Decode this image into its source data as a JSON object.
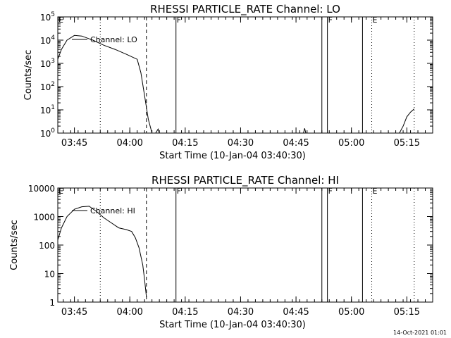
{
  "stamp": "14-Oct-2021 01:01",
  "chart_data": [
    {
      "type": "line",
      "title": "RHESSI PARTICLE_RATE Channel: LO",
      "xlabel": "Start Time (10-Jan-04 03:40:30)",
      "ylabel": "Counts/sec",
      "yscale": "log",
      "ylim": [
        1,
        100000
      ],
      "y_ticks": [
        {
          "value": 1,
          "base": "10",
          "exp": "0"
        },
        {
          "value": 10,
          "base": "10",
          "exp": "1"
        },
        {
          "value": 100,
          "base": "10",
          "exp": "2"
        },
        {
          "value": 1000,
          "base": "10",
          "exp": "3"
        },
        {
          "value": 10000,
          "base": "10",
          "exp": "4"
        },
        {
          "value": 100000,
          "base": "10",
          "exp": "5"
        }
      ],
      "xlim": [
        "03:40:30",
        "05:22:00"
      ],
      "x_ticks": [
        "03:45",
        "04:00",
        "04:15",
        "04:30",
        "04:45",
        "05:00",
        "05:15"
      ],
      "legend": "Channel: LO",
      "series": [
        {
          "name": "Channel: LO",
          "segments": [
            [
              [
                "03:40:30",
                1500
              ],
              [
                "03:41:30",
                4000
              ],
              [
                "03:43:00",
                10000
              ],
              [
                "03:45:00",
                16000
              ],
              [
                "03:47:00",
                15000
              ],
              [
                "03:50:00",
                10000
              ],
              [
                "03:53:00",
                6000
              ],
              [
                "03:56:00",
                4000
              ],
              [
                "03:59:00",
                2500
              ],
              [
                "04:02:00",
                1500
              ],
              [
                "04:03:00",
                400
              ],
              [
                "04:04:00",
                40
              ],
              [
                "04:05:00",
                4
              ],
              [
                "04:06:00",
                1
              ]
            ],
            [
              [
                "04:07:00",
                1
              ],
              [
                "04:07:40",
                1.5
              ],
              [
                "04:08:00",
                1
              ]
            ],
            [
              [
                "04:47:00",
                1
              ],
              [
                "04:47:20",
                1.6
              ],
              [
                "04:47:40",
                1
              ]
            ],
            [
              [
                "05:13:00",
                1
              ],
              [
                "05:14:00",
                2
              ],
              [
                "05:15:00",
                5
              ],
              [
                "05:16:00",
                8
              ],
              [
                "05:17:00",
                11
              ]
            ]
          ]
        }
      ],
      "markers": [
        {
          "time": "03:40:30",
          "style": "solid",
          "label": "E"
        },
        {
          "time": "03:52:00",
          "style": "dotted",
          "label": ""
        },
        {
          "time": "04:04:30",
          "style": "dashed",
          "label": ""
        },
        {
          "time": "04:12:30",
          "style": "solid",
          "label": "F"
        },
        {
          "time": "04:52:00",
          "style": "solid",
          "label": ""
        },
        {
          "time": "04:53:30",
          "style": "solid",
          "label": "F"
        },
        {
          "time": "05:03:00",
          "style": "solid",
          "label": ""
        },
        {
          "time": "05:05:30",
          "style": "dotted",
          "label": "E"
        },
        {
          "time": "05:17:00",
          "style": "dotted",
          "label": ""
        }
      ],
      "grid": false
    },
    {
      "type": "line",
      "title": "RHESSI PARTICLE_RATE Channel: HI",
      "xlabel": "Start Time (10-Jan-04 03:40:30)",
      "ylabel": "Counts/sec",
      "yscale": "log",
      "ylim": [
        1,
        10000
      ],
      "y_ticks": [
        {
          "value": 1,
          "label": "1"
        },
        {
          "value": 10,
          "label": "10"
        },
        {
          "value": 100,
          "label": "100"
        },
        {
          "value": 1000,
          "label": "1000"
        },
        {
          "value": 10000,
          "label": "10000"
        }
      ],
      "xlim": [
        "03:40:30",
        "05:22:00"
      ],
      "x_ticks": [
        "03:45",
        "04:00",
        "04:15",
        "04:30",
        "04:45",
        "05:00",
        "05:15"
      ],
      "legend": "Channel: HI",
      "series": [
        {
          "name": "Channel: HI",
          "segments": [
            [
              [
                "03:40:30",
                150
              ],
              [
                "03:41:30",
                400
              ],
              [
                "03:43:00",
                1000
              ],
              [
                "03:45:00",
                1800
              ],
              [
                "03:47:00",
                2200
              ],
              [
                "03:49:00",
                2300
              ],
              [
                "03:51:00",
                1500
              ],
              [
                "03:53:00",
                900
              ],
              [
                "03:55:00",
                600
              ],
              [
                "03:57:00",
                400
              ],
              [
                "03:59:00",
                350
              ],
              [
                "04:00:30",
                300
              ],
              [
                "04:01:30",
                180
              ],
              [
                "04:02:30",
                80
              ],
              [
                "04:03:30",
                20
              ],
              [
                "04:04:00",
                6
              ],
              [
                "04:04:30",
                1.5
              ]
            ]
          ]
        }
      ],
      "markers": [
        {
          "time": "03:40:30",
          "style": "solid",
          "label": "E"
        },
        {
          "time": "03:52:00",
          "style": "dotted",
          "label": ""
        },
        {
          "time": "04:04:30",
          "style": "dashed",
          "label": ""
        },
        {
          "time": "04:12:30",
          "style": "solid",
          "label": "F"
        },
        {
          "time": "04:52:00",
          "style": "solid",
          "label": ""
        },
        {
          "time": "04:53:30",
          "style": "solid",
          "label": "F"
        },
        {
          "time": "05:03:00",
          "style": "solid",
          "label": ""
        },
        {
          "time": "05:05:30",
          "style": "dotted",
          "label": "E"
        },
        {
          "time": "05:17:00",
          "style": "dotted",
          "label": ""
        }
      ],
      "grid": false
    }
  ]
}
